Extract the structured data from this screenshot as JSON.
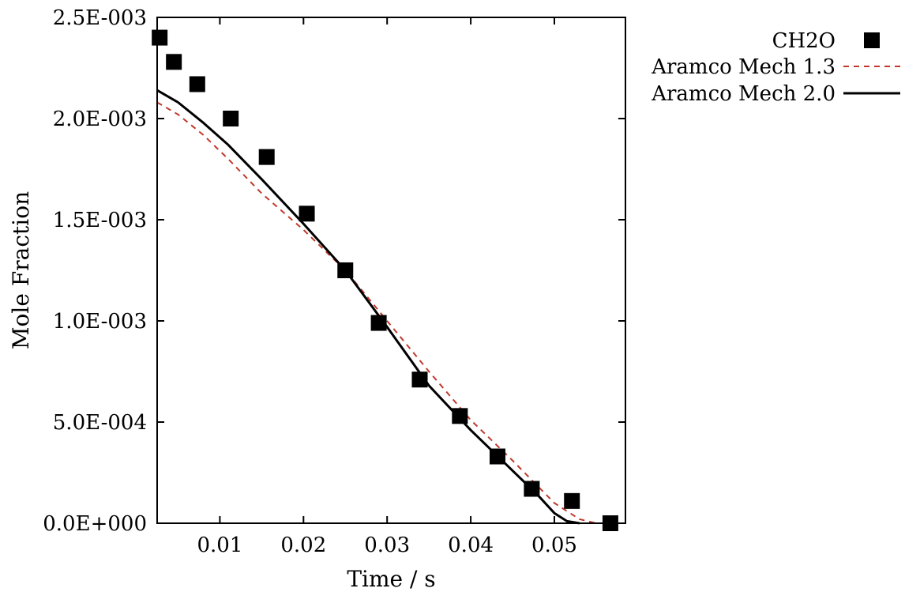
{
  "chart_data": {
    "type": "scatter",
    "xlabel": "Time / s",
    "ylabel": "Mole Fraction",
    "xlim": [
      0.0025,
      0.0585
    ],
    "ylim": [
      0,
      0.0025
    ],
    "x_ticks": [
      0.01,
      0.02,
      0.03,
      0.04,
      0.05
    ],
    "x_tick_labels": [
      "0.01",
      "0.02",
      "0.03",
      "0.04",
      "0.05"
    ],
    "y_ticks": [
      0,
      0.0005,
      0.001,
      0.0015,
      0.002,
      0.0025
    ],
    "y_tick_labels": [
      "0.0E+000",
      "5.0E-004",
      "1.0E-003",
      "1.5E-003",
      "2.0E-003",
      "2.5E-003"
    ],
    "grid": false,
    "legend_position": "outside-top-right",
    "series": [
      {
        "name": "CH2O",
        "kind": "markers",
        "marker": "square",
        "color": "#000000",
        "x": [
          0.0028,
          0.0045,
          0.0073,
          0.0113,
          0.0156,
          0.0204,
          0.025,
          0.029,
          0.0339,
          0.0387,
          0.0432,
          0.0473,
          0.0521,
          0.0567
        ],
        "y": [
          0.0024,
          0.00228,
          0.00217,
          0.002,
          0.00181,
          0.00153,
          0.00125,
          0.00099,
          0.00071,
          0.00053,
          0.00033,
          0.00017,
          0.00011,
          0.0
        ]
      },
      {
        "name": "Aramco Mech 1.3",
        "kind": "line",
        "dash": "dashed",
        "color": "#c0392b",
        "x": [
          0.0025,
          0.005,
          0.008,
          0.011,
          0.015,
          0.02,
          0.025,
          0.03,
          0.035,
          0.04,
          0.045,
          0.05,
          0.053,
          0.055
        ],
        "y": [
          0.00208,
          0.00202,
          0.00192,
          0.0018,
          0.00163,
          0.00145,
          0.00125,
          0.001,
          0.00075,
          0.00051,
          0.00031,
          0.0001,
          2e-05,
          0.0
        ]
      },
      {
        "name": "Aramco Mech 2.0",
        "kind": "line",
        "dash": "solid",
        "color": "#000000",
        "x": [
          0.0025,
          0.005,
          0.008,
          0.011,
          0.015,
          0.02,
          0.025,
          0.03,
          0.035,
          0.04,
          0.045,
          0.048,
          0.05,
          0.0515,
          0.053
        ],
        "y": [
          0.00214,
          0.00208,
          0.00198,
          0.00187,
          0.0017,
          0.00148,
          0.00125,
          0.00097,
          0.00068,
          0.00046,
          0.00026,
          0.00014,
          5e-05,
          1e-05,
          0.0
        ]
      }
    ]
  }
}
